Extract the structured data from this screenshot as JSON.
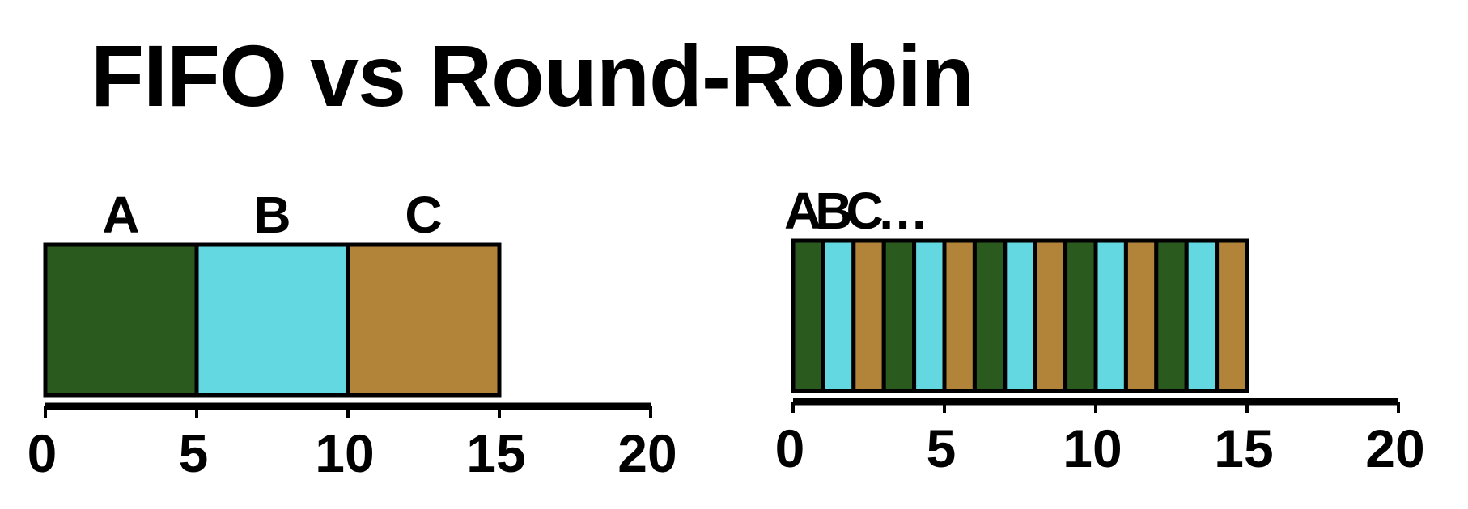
{
  "title": "FIFO vs Round-Robin",
  "colors": {
    "A": "#2b5a1f",
    "B": "#63d8e0",
    "C": "#b2843a",
    "outline": "#000000"
  },
  "fifo": {
    "jobs": [
      {
        "label": "A",
        "start": 0,
        "end": 5
      },
      {
        "label": "B",
        "start": 5,
        "end": 10
      },
      {
        "label": "C",
        "start": 10,
        "end": 15
      }
    ],
    "axis": {
      "min": 0,
      "max": 20,
      "ticks": [
        "0",
        "5",
        "10",
        "15",
        "20"
      ]
    }
  },
  "round_robin": {
    "label": "ABC…",
    "order": [
      "A",
      "B",
      "C"
    ],
    "slice": 1,
    "end": 15,
    "axis": {
      "min": 0,
      "max": 20,
      "ticks": [
        "0",
        "5",
        "10",
        "15",
        "20"
      ]
    }
  }
}
